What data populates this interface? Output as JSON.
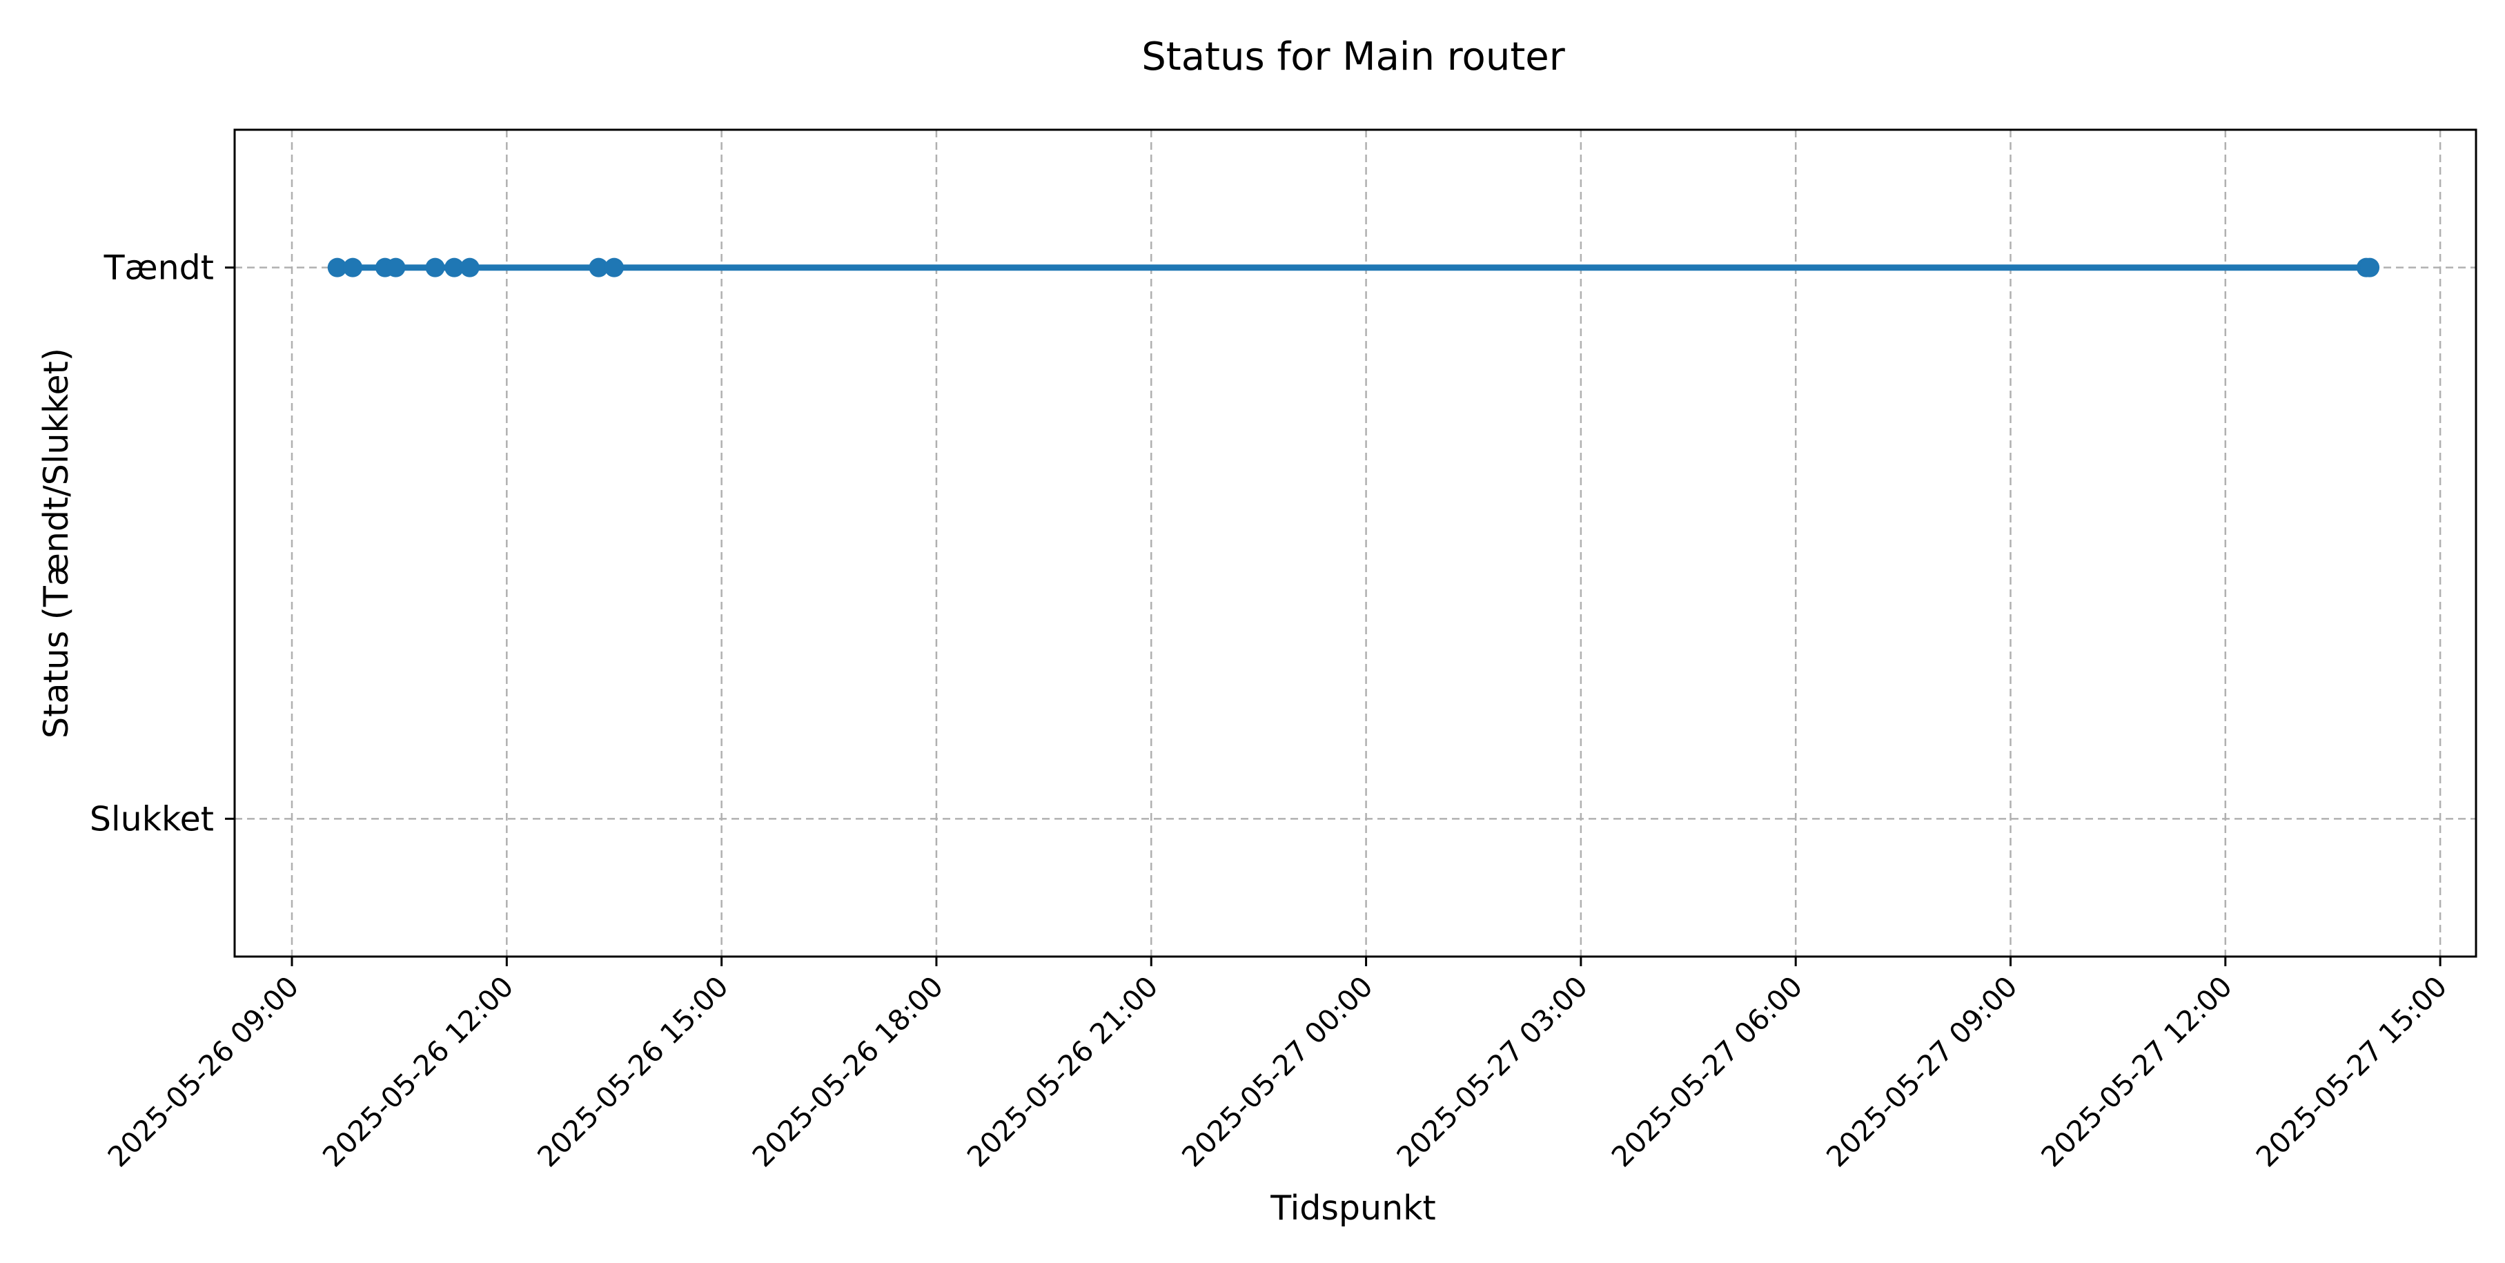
{
  "chart_data": {
    "type": "line",
    "title": "Status for Main router",
    "xlabel": "Tidspunkt",
    "ylabel": "Status (Tændt/Slukket)",
    "x_ticks": [
      "2025-05-26 09:00",
      "2025-05-26 12:00",
      "2025-05-26 15:00",
      "2025-05-26 18:00",
      "2025-05-26 21:00",
      "2025-05-27 00:00",
      "2025-05-27 03:00",
      "2025-05-27 06:00",
      "2025-05-27 09:00",
      "2025-05-27 12:00",
      "2025-05-27 15:00"
    ],
    "y_ticks": [
      {
        "value": 0,
        "label": "Slukket"
      },
      {
        "value": 1,
        "label": "Tændt"
      }
    ],
    "xlim": [
      "2025-05-26 08:12",
      "2025-05-27 15:30"
    ],
    "ylim": [
      -0.25,
      1.25
    ],
    "grid": true,
    "legend": "none",
    "series": [
      {
        "color": "#1f77b4",
        "points": [
          {
            "x": "2025-05-26 09:38",
            "y": 1
          },
          {
            "x": "2025-05-26 09:51",
            "y": 1
          },
          {
            "x": "2025-05-26 10:18",
            "y": 1
          },
          {
            "x": "2025-05-26 10:27",
            "y": 1
          },
          {
            "x": "2025-05-26 11:00",
            "y": 1
          },
          {
            "x": "2025-05-26 11:16",
            "y": 1
          },
          {
            "x": "2025-05-26 11:29",
            "y": 1
          },
          {
            "x": "2025-05-26 13:17",
            "y": 1
          },
          {
            "x": "2025-05-26 13:30",
            "y": 1
          },
          {
            "x": "2025-05-27 13:58",
            "y": 1
          },
          {
            "x": "2025-05-27 14:01",
            "y": 1
          }
        ]
      }
    ]
  }
}
